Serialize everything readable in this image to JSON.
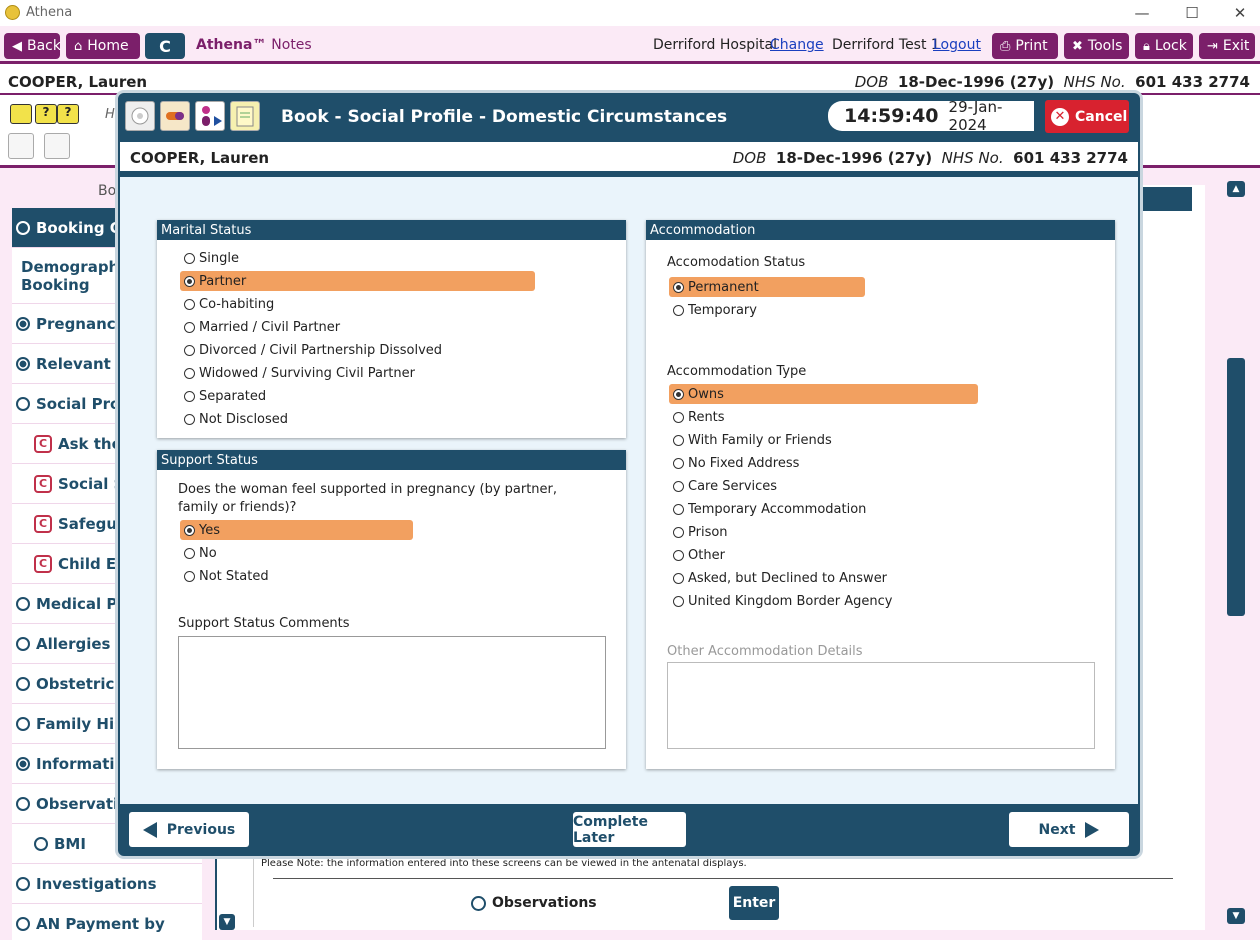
{
  "window": {
    "title": "Athena",
    "minimize": "—",
    "maximize": "☐",
    "close": "✕"
  },
  "toolbar": {
    "back": "Back",
    "home": "Home",
    "c": "C",
    "app_name": "Athena™",
    "app_sub": "Notes",
    "hospital": "Derriford Hospital",
    "change": "Change",
    "user": "Derriford Test 1",
    "logout": "Logout",
    "print": "Print",
    "tools": "Tools",
    "lock": "Lock",
    "exit": "Exit"
  },
  "patient": {
    "name": "COOPER, Lauren",
    "dob_label": "DOB",
    "dob": "18-Dec-1996 (27y)",
    "nhs_label": "NHS No.",
    "nhs": "601 433 2774"
  },
  "background": {
    "header_partial": "Bo",
    "h_partial": "H",
    "sidebar": [
      {
        "label": "Booking Ov",
        "state": "active"
      },
      {
        "label": "Demographics Booking",
        "state": "plain"
      },
      {
        "label": "Pregnancy I",
        "state": "filled"
      },
      {
        "label": "Relevant Ot",
        "state": "filled"
      },
      {
        "label": "Social Profil",
        "state": "empty"
      },
      {
        "label": "Ask the C",
        "state": "c"
      },
      {
        "label": "Social Se",
        "state": "c"
      },
      {
        "label": "Safegua",
        "state": "c"
      },
      {
        "label": "Child Exp",
        "state": "c"
      },
      {
        "label": "Medical Pro",
        "state": "empty"
      },
      {
        "label": "Allergies",
        "state": "empty"
      },
      {
        "label": "Obstetric H",
        "state": "empty"
      },
      {
        "label": "Family Histo",
        "state": "empty"
      },
      {
        "label": "Information",
        "state": "filled"
      },
      {
        "label": "Observation",
        "state": "empty"
      },
      {
        "label": "BMI",
        "state": "sub"
      },
      {
        "label": "Investigations",
        "state": "empty"
      },
      {
        "label": "AN Payment by",
        "state": "empty"
      }
    ],
    "note": "Please Note: the information entered into these screens can be viewed in the antenatal displays.",
    "observations": "Observations",
    "enter": "Enter",
    "c_badge": "C"
  },
  "modal": {
    "title": "Book - Social Profile - Domestic Circumstances",
    "time": "14:59:40",
    "date": "29-Jan-2024",
    "cancel": "Cancel",
    "marital": {
      "header": "Marital Status",
      "options": [
        "Single",
        "Partner",
        "Co-habiting",
        "Married / Civil Partner",
        "Divorced / Civil Partnership Dissolved",
        "Widowed / Surviving Civil Partner",
        "Separated",
        "Not Disclosed"
      ],
      "selected": "Partner"
    },
    "support": {
      "header": "Support Status",
      "question": "Does the woman feel supported in pregnancy (by partner, family or friends)?",
      "options": [
        "Yes",
        "No",
        "Not Stated"
      ],
      "selected": "Yes",
      "comments_label": "Support Status Comments",
      "comments_value": ""
    },
    "accommodation": {
      "header": "Accommodation",
      "status_label": "Accomodation Status",
      "status_options": [
        "Permanent",
        "Temporary"
      ],
      "status_selected": "Permanent",
      "type_label": "Accommodation Type",
      "type_options": [
        "Owns",
        "Rents",
        "With Family or Friends",
        "No Fixed Address",
        "Care Services",
        "Temporary Accommodation",
        "Prison",
        "Other",
        "Asked, but Declined to Answer",
        "United Kingdom Border Agency"
      ],
      "type_selected": "Owns",
      "other_label": "Other Accommodation Details",
      "other_value": ""
    },
    "footer": {
      "previous": "Previous",
      "complete_later": "Complete Later",
      "next": "Next"
    }
  },
  "colors": {
    "brand": "#7b1f6a",
    "navy": "#1f4e6a",
    "selected": "#f2a060",
    "cancel": "#d8222f"
  }
}
